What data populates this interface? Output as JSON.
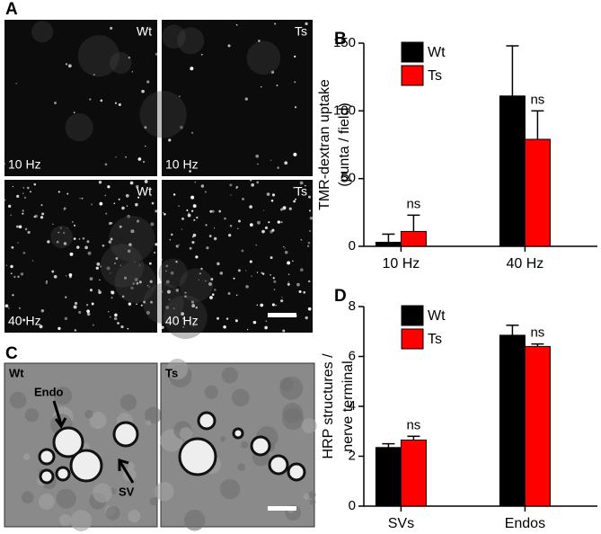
{
  "figure": {
    "panel_labels": [
      "A",
      "B",
      "C",
      "D"
    ],
    "panel_a": {
      "images": [
        {
          "genotype": "Wt",
          "frequency": "10 Hz"
        },
        {
          "genotype": "Ts",
          "frequency": "10 Hz"
        },
        {
          "genotype": "Wt",
          "frequency": "40 Hz"
        },
        {
          "genotype": "Ts",
          "frequency": "40 Hz"
        }
      ]
    },
    "panel_c": {
      "images": [
        "Wt",
        "Ts"
      ],
      "arrow_labels": [
        "Endo",
        "SV"
      ]
    }
  },
  "chart_data": [
    {
      "type": "bar",
      "y_label": [
        "TMR-dextran uptake",
        "(punta / field)"
      ],
      "categories": [
        "10 Hz",
        "40 Hz"
      ],
      "series": [
        {
          "name": "Wt",
          "color": "#000000",
          "values": [
            3,
            111
          ],
          "errors": [
            6,
            37
          ]
        },
        {
          "name": "Ts",
          "color": "#ff0000",
          "values": [
            11,
            79
          ],
          "errors": [
            12,
            21
          ],
          "significance": [
            "ns",
            "ns"
          ]
        }
      ],
      "ylim": [
        0,
        150
      ],
      "yticks": [
        0,
        50,
        100,
        150
      ],
      "legend": "upper-left"
    },
    {
      "type": "bar",
      "y_label": [
        "HRP structures /",
        "nerve terminal"
      ],
      "categories": [
        "SVs",
        "Endos"
      ],
      "series": [
        {
          "name": "Wt",
          "color": "#000000",
          "values": [
            2.35,
            6.85
          ],
          "errors": [
            0.15,
            0.4
          ]
        },
        {
          "name": "Ts",
          "color": "#ff0000",
          "values": [
            2.65,
            6.4
          ],
          "errors": [
            0.15,
            0.1
          ],
          "significance": [
            "ns",
            "ns"
          ]
        }
      ],
      "ylim": [
        0,
        8
      ],
      "yticks": [
        0,
        2,
        4,
        6,
        8
      ],
      "legend": "upper-left"
    }
  ]
}
